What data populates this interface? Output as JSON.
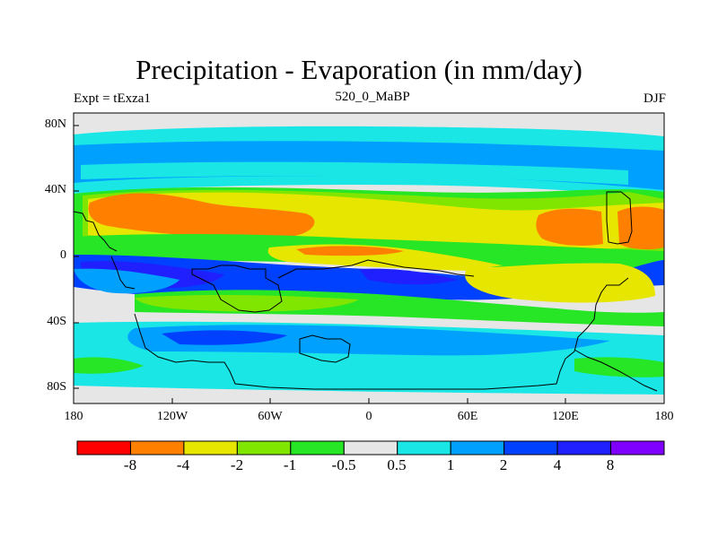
{
  "title": "Precipitation - Evaporation (in mm/day)",
  "left_label": "Expt = tExza1",
  "center_label": "520_0_MaBP",
  "right_label": "DJF",
  "lat_ticks": [
    "80N",
    "40N",
    "0",
    "40S",
    "80S"
  ],
  "lon_ticks": [
    "180",
    "120W",
    "60W",
    "0",
    "60E",
    "120E",
    "180"
  ],
  "colorbar": {
    "labels": [
      "-8",
      "-4",
      "-2",
      "-1",
      "-0.5",
      "0.5",
      "1",
      "2",
      "4",
      "8"
    ],
    "colors": [
      "#ff0000",
      "#ff8000",
      "#e6e600",
      "#80e600",
      "#26e626",
      "#e6e6e6",
      "#1ae6e6",
      "#00a0ff",
      "#0040ff",
      "#2020ff",
      "#8000ff"
    ]
  },
  "palette": {
    "neutral": "#e6e6e6",
    "orange": "#ff8000",
    "yellow": "#e6e600",
    "yellow_green": "#80e600",
    "green": "#26e626",
    "cyan": "#1ae6e6",
    "sky_blue": "#00a0ff",
    "blue": "#0040ff",
    "dark_blue": "#2020ff"
  }
}
